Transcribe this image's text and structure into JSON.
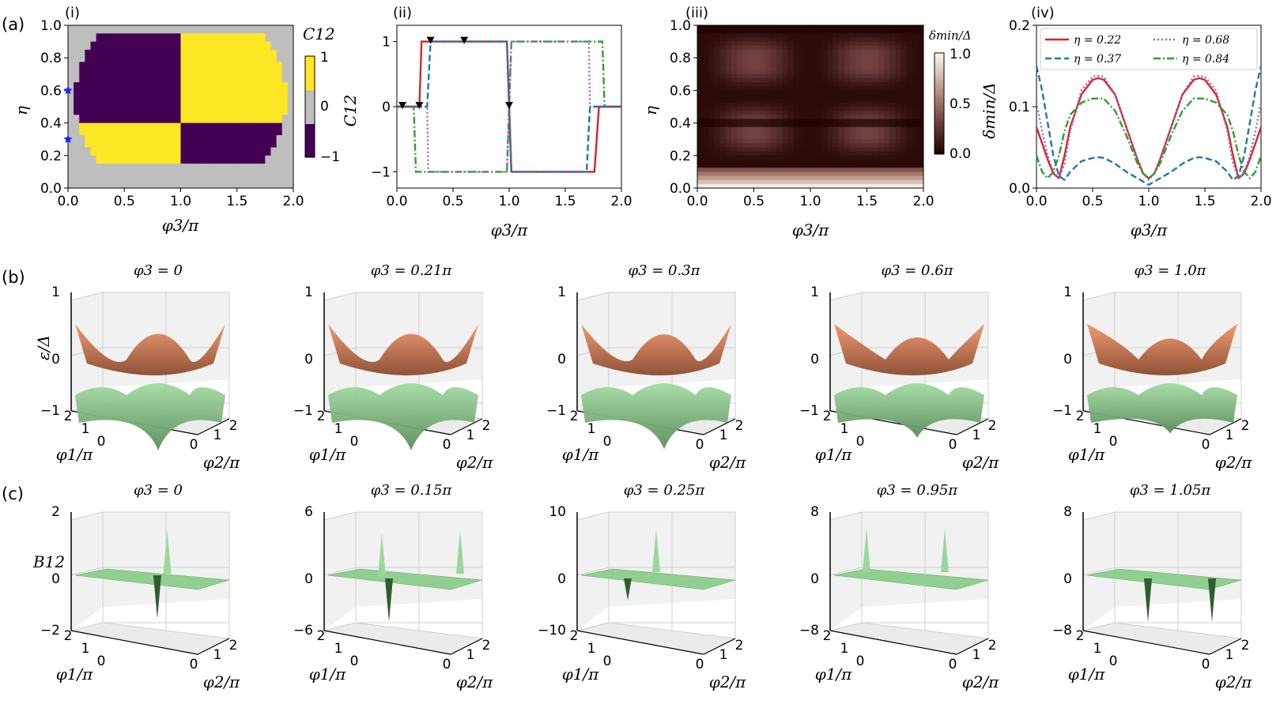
{
  "panel_labels": {
    "a": "(a)",
    "b": "(b)",
    "c": "(c)"
  },
  "sub_labels": {
    "i": "(i)",
    "ii": "(ii)",
    "iii": "(iii)",
    "iv": "(iv)"
  },
  "colors": {
    "purple": "#440154",
    "yellow": "#fde725",
    "gray": "#bebebe",
    "red": "#d62728",
    "blue": "#1f77b4",
    "magenta": "#9467bd",
    "green": "#2ca02c",
    "orange_surface": "#e8875a",
    "green_surface": "#8fcf8f",
    "star": "#1f1fff"
  },
  "chart_data": [
    {
      "id": "a-i",
      "type": "heatmap",
      "title": "",
      "xlabel": "φ3/π",
      "ylabel": "η",
      "xlim": [
        0,
        2
      ],
      "ylim": [
        0,
        1
      ],
      "xticks": [
        "0.0",
        "0.5",
        "1.0",
        "1.5",
        "2.0"
      ],
      "yticks": [
        "0.0",
        "0.2",
        "0.4",
        "0.6",
        "0.8",
        "1.0"
      ],
      "colorbar": {
        "label": "C12",
        "ticks": [
          "1",
          "0",
          "−1"
        ],
        "values": [
          1,
          0,
          -1
        ]
      },
      "values_description": "C12 in {−1,0,1}",
      "markers": [
        {
          "x": 0.0,
          "y": 0.6
        },
        {
          "x": 0.0,
          "y": 0.3
        }
      ]
    },
    {
      "id": "a-ii",
      "type": "line",
      "xlabel": "φ3/π",
      "ylabel": "C12",
      "xlim": [
        0,
        2
      ],
      "ylim": [
        -1.25,
        1.25
      ],
      "xticks": [
        "0.0",
        "0.5",
        "1.0",
        "1.5",
        "2.0"
      ],
      "yticks": [
        "1",
        "0",
        "−1"
      ],
      "series": [
        {
          "name": "η = 0.22",
          "color": "red",
          "style": "solid",
          "x": [
            0.0,
            0.2,
            0.22,
            0.98,
            1.0,
            1.02,
            1.76,
            1.8,
            2.0
          ],
          "y": [
            0,
            0,
            1,
            1,
            0,
            -1,
            -1,
            0,
            0
          ]
        },
        {
          "name": "η = 0.37",
          "color": "blue",
          "style": "dashed",
          "x": [
            0.0,
            0.27,
            0.3,
            0.98,
            1.0,
            1.02,
            1.69,
            1.72,
            2.0
          ],
          "y": [
            0,
            0,
            1,
            1,
            0,
            -1,
            -1,
            0,
            0
          ]
        },
        {
          "name": "η = 0.68",
          "color": "magenta",
          "style": "dotted",
          "x": [
            0.0,
            0.27,
            0.28,
            0.98,
            1.0,
            1.02,
            1.71,
            1.72,
            2.0
          ],
          "y": [
            0,
            0,
            -1,
            -1,
            0,
            1,
            1,
            0,
            0
          ]
        },
        {
          "name": "η = 0.84",
          "color": "green",
          "style": "dashdot",
          "x": [
            0.0,
            0.15,
            0.17,
            0.98,
            1.0,
            1.02,
            1.83,
            1.85,
            2.0
          ],
          "y": [
            0,
            0,
            -1,
            -1,
            0,
            1,
            1,
            0,
            0
          ]
        }
      ],
      "markers": [
        {
          "x": 0.05,
          "y": 0
        },
        {
          "x": 0.2,
          "y": 0
        },
        {
          "x": 0.3,
          "y": 1
        },
        {
          "x": 0.6,
          "y": 1
        },
        {
          "x": 1.0,
          "y": 0
        }
      ]
    },
    {
      "id": "a-iii",
      "type": "heatmap",
      "xlabel": "φ3/π",
      "ylabel": "η",
      "xlim": [
        0,
        2
      ],
      "ylim": [
        0,
        1
      ],
      "xticks": [
        "0.0",
        "0.5",
        "1.0",
        "1.5",
        "2.0"
      ],
      "yticks": [
        "0.0",
        "0.2",
        "0.4",
        "0.6",
        "0.8",
        "1.0"
      ],
      "colorbar": {
        "label": "δmin/Δ",
        "ticks": [
          "1.0",
          "0.5",
          "0.0"
        ],
        "values": [
          1.0,
          0.5,
          0.0
        ]
      }
    },
    {
      "id": "a-iv",
      "type": "line",
      "xlabel": "φ3/π",
      "ylabel": "δmin/Δ",
      "xlim": [
        0,
        2
      ],
      "ylim": [
        0,
        0.2
      ],
      "xticks": [
        "0.0",
        "0.5",
        "1.0",
        "1.5",
        "2.0"
      ],
      "yticks": [
        "0.0",
        "0.1",
        "0.2"
      ],
      "legend_position": "top",
      "series": [
        {
          "name": "η = 0.22",
          "color": "red",
          "style": "solid",
          "x": [
            0.0,
            0.05,
            0.1,
            0.15,
            0.2,
            0.25,
            0.3,
            0.4,
            0.5,
            0.55,
            0.6,
            0.7,
            0.8,
            0.9,
            0.95,
            1.0,
            1.05,
            1.1,
            1.2,
            1.3,
            1.4,
            1.45,
            1.5,
            1.6,
            1.7,
            1.75,
            1.8,
            1.85,
            1.9,
            1.95,
            2.0
          ],
          "y": [
            0.075,
            0.055,
            0.035,
            0.018,
            0.012,
            0.04,
            0.075,
            0.115,
            0.133,
            0.135,
            0.133,
            0.115,
            0.075,
            0.035,
            0.018,
            0.012,
            0.018,
            0.035,
            0.075,
            0.115,
            0.133,
            0.135,
            0.133,
            0.115,
            0.075,
            0.04,
            0.012,
            0.018,
            0.035,
            0.055,
            0.075
          ]
        },
        {
          "name": "η = 0.37",
          "color": "blue",
          "style": "dashed",
          "x": [
            0.0,
            0.05,
            0.1,
            0.15,
            0.2,
            0.25,
            0.3,
            0.4,
            0.5,
            0.55,
            0.6,
            0.7,
            0.8,
            0.9,
            1.0,
            1.1,
            1.2,
            1.3,
            1.4,
            1.45,
            1.5,
            1.6,
            1.7,
            1.75,
            1.8,
            1.85,
            1.9,
            1.95,
            2.0
          ],
          "y": [
            0.15,
            0.12,
            0.08,
            0.04,
            0.015,
            0.01,
            0.02,
            0.033,
            0.037,
            0.038,
            0.037,
            0.03,
            0.02,
            0.012,
            0.004,
            0.012,
            0.02,
            0.03,
            0.037,
            0.038,
            0.037,
            0.033,
            0.02,
            0.01,
            0.015,
            0.04,
            0.08,
            0.12,
            0.15
          ]
        },
        {
          "name": "η = 0.68",
          "color": "magenta",
          "style": "dotted",
          "x": [
            0.0,
            0.05,
            0.1,
            0.15,
            0.2,
            0.25,
            0.3,
            0.4,
            0.5,
            0.55,
            0.6,
            0.7,
            0.8,
            0.9,
            0.95,
            1.0,
            1.05,
            1.1,
            1.2,
            1.3,
            1.4,
            1.45,
            1.5,
            1.6,
            1.7,
            1.75,
            1.8,
            1.85,
            1.9,
            1.95,
            2.0
          ],
          "y": [
            0.105,
            0.07,
            0.04,
            0.02,
            0.012,
            0.03,
            0.07,
            0.12,
            0.137,
            0.138,
            0.137,
            0.115,
            0.075,
            0.035,
            0.018,
            0.01,
            0.018,
            0.035,
            0.075,
            0.115,
            0.137,
            0.138,
            0.137,
            0.12,
            0.07,
            0.03,
            0.012,
            0.02,
            0.04,
            0.07,
            0.105
          ]
        },
        {
          "name": "η = 0.84",
          "color": "green",
          "style": "dashdot",
          "x": [
            0.0,
            0.05,
            0.1,
            0.15,
            0.2,
            0.25,
            0.3,
            0.4,
            0.5,
            0.55,
            0.6,
            0.7,
            0.8,
            0.9,
            0.95,
            1.0,
            1.05,
            1.1,
            1.2,
            1.3,
            1.4,
            1.45,
            1.5,
            1.6,
            1.7,
            1.75,
            1.8,
            1.85,
            1.9,
            1.95,
            2.0
          ],
          "y": [
            0.04,
            0.02,
            0.012,
            0.02,
            0.04,
            0.07,
            0.09,
            0.105,
            0.11,
            0.11,
            0.11,
            0.095,
            0.065,
            0.03,
            0.018,
            0.012,
            0.018,
            0.03,
            0.065,
            0.095,
            0.11,
            0.11,
            0.11,
            0.105,
            0.09,
            0.07,
            0.04,
            0.02,
            0.012,
            0.02,
            0.04
          ]
        }
      ]
    },
    {
      "id": "b",
      "type": "surface3d",
      "zlabel": "ε/Δ",
      "xlabel": "φ2/π",
      "ylabel": "φ1/π",
      "zticks": [
        "1",
        "0",
        "−1"
      ],
      "xticks": [
        "0",
        "1",
        "2"
      ],
      "yticks": [
        "2",
        "1",
        "0"
      ],
      "titles": [
        "φ3 = 0",
        "φ3 = 0.21π",
        "φ3 = 0.3π",
        "φ3 = 0.6π",
        "φ3 = 1.0π"
      ]
    },
    {
      "id": "c",
      "type": "surface3d",
      "zlabel": "B12",
      "xlabel": "φ2/π",
      "ylabel": "φ1/π",
      "xticks": [
        "0",
        "1",
        "2"
      ],
      "yticks": [
        "2",
        "1",
        "0"
      ],
      "titles": [
        "φ3 = 0",
        "φ3 = 0.15π",
        "φ3 = 0.25π",
        "φ3 = 0.95π",
        "φ3 = 1.05π"
      ],
      "zticks": [
        [
          "2",
          "0",
          "−2"
        ],
        [
          "6",
          "0",
          "−6"
        ],
        [
          "10",
          "0",
          "−10"
        ],
        [
          "8",
          "0",
          "−8"
        ],
        [
          "8",
          "0",
          "−8"
        ]
      ]
    }
  ]
}
